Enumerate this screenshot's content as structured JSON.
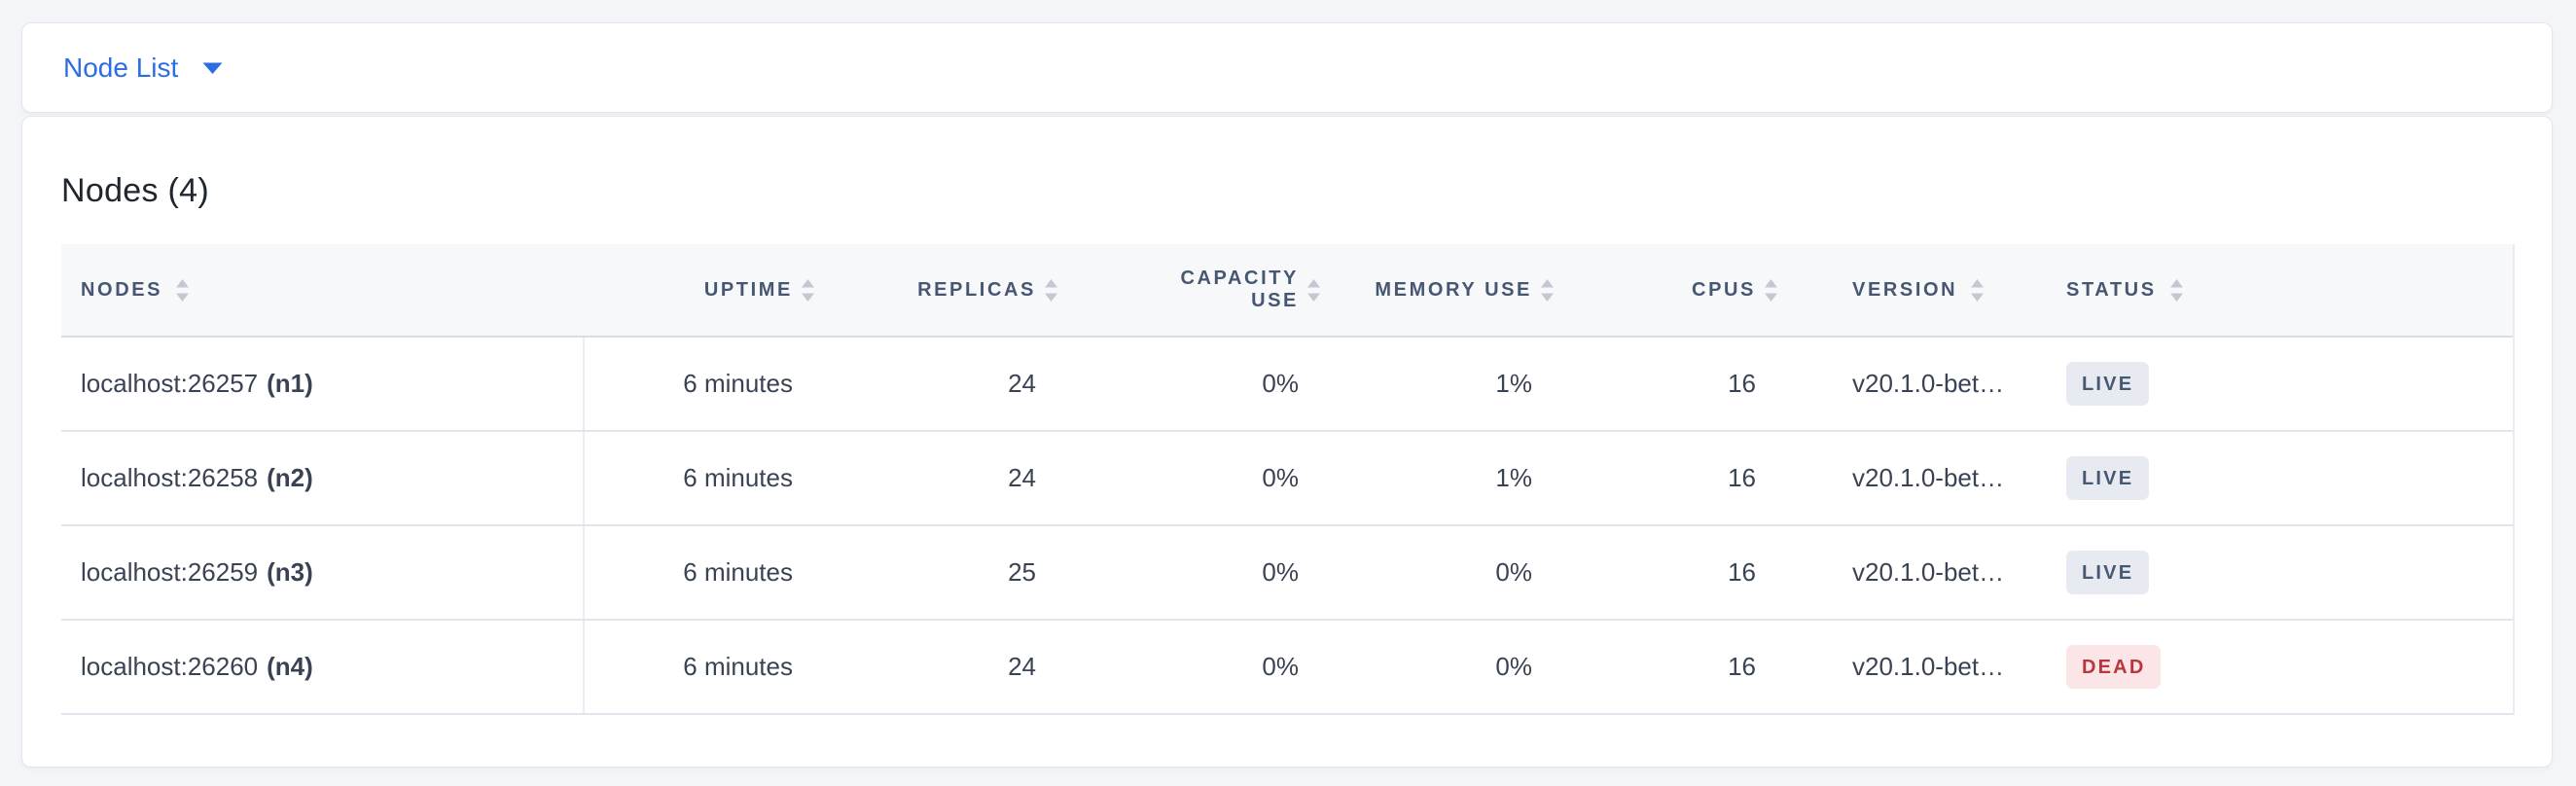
{
  "toolbar": {
    "dropdown_label": "Node List"
  },
  "main": {
    "title": "Nodes (4)"
  },
  "colors": {
    "accent_blue": "#2d6de2",
    "page_background": "#f4f5f9",
    "header_text": "#475671",
    "cell_text": "#3a4354",
    "sort_icon": "#c3c8d2"
  },
  "table": {
    "columns": [
      {
        "key": "nodes",
        "label": "NODES",
        "align": "left",
        "sortable": true
      },
      {
        "key": "uptime",
        "label": "UPTIME",
        "align": "right",
        "sortable": true
      },
      {
        "key": "replicas",
        "label": "REPLICAS",
        "align": "right",
        "sortable": true
      },
      {
        "key": "capacity",
        "label": "CAPACITY USE",
        "align": "right",
        "sortable": true
      },
      {
        "key": "memory",
        "label": "MEMORY USE",
        "align": "right",
        "sortable": true
      },
      {
        "key": "cpus",
        "label": "CPUS",
        "align": "right",
        "sortable": true
      },
      {
        "key": "version",
        "label": "VERSION",
        "align": "left",
        "sortable": true
      },
      {
        "key": "status",
        "label": "STATUS",
        "align": "left",
        "sortable": true
      }
    ],
    "rows": [
      {
        "node_address": "localhost:26257",
        "node_id": "(n1)",
        "uptime": "6 minutes",
        "replicas": "24",
        "capacity": "0%",
        "memory": "1%",
        "cpus": "16",
        "version": "v20.1.0-bet…",
        "status": "LIVE"
      },
      {
        "node_address": "localhost:26258",
        "node_id": "(n2)",
        "uptime": "6 minutes",
        "replicas": "24",
        "capacity": "0%",
        "memory": "1%",
        "cpus": "16",
        "version": "v20.1.0-bet…",
        "status": "LIVE"
      },
      {
        "node_address": "localhost:26259",
        "node_id": "(n3)",
        "uptime": "6 minutes",
        "replicas": "25",
        "capacity": "0%",
        "memory": "0%",
        "cpus": "16",
        "version": "v20.1.0-bet…",
        "status": "LIVE"
      },
      {
        "node_address": "localhost:26260",
        "node_id": "(n4)",
        "uptime": "6 minutes",
        "replicas": "24",
        "capacity": "0%",
        "memory": "0%",
        "cpus": "16",
        "version": "v20.1.0-bet…",
        "status": "DEAD"
      }
    ],
    "status_styles": {
      "LIVE": {
        "bg": "#e7eaf1",
        "color": "#475872"
      },
      "DEAD": {
        "bg": "#fbe5e6",
        "color": "#b8373f"
      }
    }
  }
}
